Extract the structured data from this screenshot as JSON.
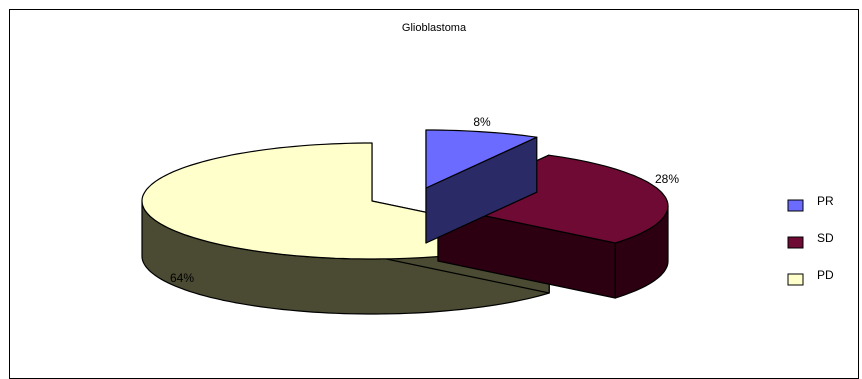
{
  "chart_data": {
    "type": "pie",
    "style": "3d-exploded",
    "title": "Glioblastoma",
    "categories": [
      "PR",
      "SD",
      "PD"
    ],
    "values": [
      8,
      28,
      64
    ],
    "data_labels": [
      "8%",
      "28%",
      "64%"
    ],
    "colors": {
      "PR": "#6b6bff",
      "SD": "#6e0a33",
      "PD": "#ffffcc"
    },
    "side_colors": {
      "PR": "#2a2a66",
      "SD": "#2c0011",
      "PD": "#4b4b33"
    },
    "legend": {
      "placement": "right",
      "items": [
        "PR",
        "SD",
        "PD"
      ]
    }
  }
}
